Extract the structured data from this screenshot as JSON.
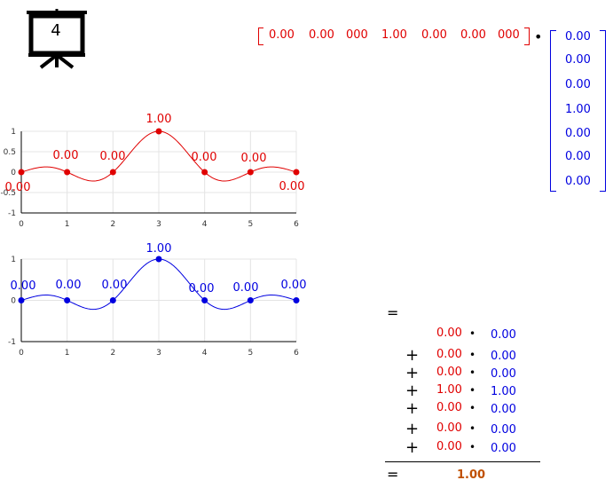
{
  "slide_number": "4",
  "row_vector": [
    "0.00",
    "0.00",
    "000",
    "1.00",
    "0.00",
    "0.00",
    "000"
  ],
  "column_vector": [
    "0.00",
    "0.00",
    "0.00",
    "1.00",
    "0.00",
    "0.00",
    "0.00"
  ],
  "dot_symbol": "•",
  "equals_symbol": "=",
  "plus_symbol": "+",
  "products": [
    {
      "plus": "",
      "a": "0.00",
      "b": "0.00"
    },
    {
      "plus": "+",
      "a": "0.00",
      "b": "0.00"
    },
    {
      "plus": "+",
      "a": "0.00",
      "b": "0.00"
    },
    {
      "plus": "+",
      "a": "1.00",
      "b": "1.00"
    },
    {
      "plus": "+",
      "a": "0.00",
      "b": "0.00"
    },
    {
      "plus": "+",
      "a": "0.00",
      "b": "0.00"
    },
    {
      "plus": "+",
      "a": "0.00",
      "b": "0.00"
    }
  ],
  "result": "1.00",
  "colors": {
    "red": "#e00000",
    "blue": "#0000e0",
    "result": "#c05000"
  },
  "chart_data": [
    {
      "type": "line",
      "x": [
        0,
        1,
        2,
        3,
        4,
        5,
        6
      ],
      "values": [
        0,
        0,
        0,
        1,
        0,
        0,
        0
      ],
      "labels": [
        "0.00",
        "0.00",
        "0.00",
        "1.00",
        "0.00",
        "0.00",
        "0.00"
      ],
      "xlim": [
        0,
        6
      ],
      "ylim": [
        -1,
        1
      ],
      "xticks": [
        "0",
        "1",
        "2",
        "3",
        "4",
        "5",
        "6"
      ],
      "yticks": [
        "1",
        "0.5",
        "0",
        "-0.5",
        "-1"
      ],
      "color": "#e00000",
      "grid": true
    },
    {
      "type": "line",
      "x": [
        0,
        1,
        2,
        3,
        4,
        5,
        6
      ],
      "values": [
        0,
        0,
        0,
        1,
        0,
        0,
        0
      ],
      "labels": [
        "0.00",
        "0.00",
        "0.00",
        "1.00",
        "0.00",
        "0.00",
        "0.00"
      ],
      "xlim": [
        0,
        6
      ],
      "ylim": [
        -1,
        1
      ],
      "xticks": [
        "0",
        "1",
        "2",
        "3",
        "4",
        "5",
        "6"
      ],
      "yticks": [
        "1",
        "0",
        "-1"
      ],
      "color": "#0000e0",
      "grid": true
    }
  ]
}
